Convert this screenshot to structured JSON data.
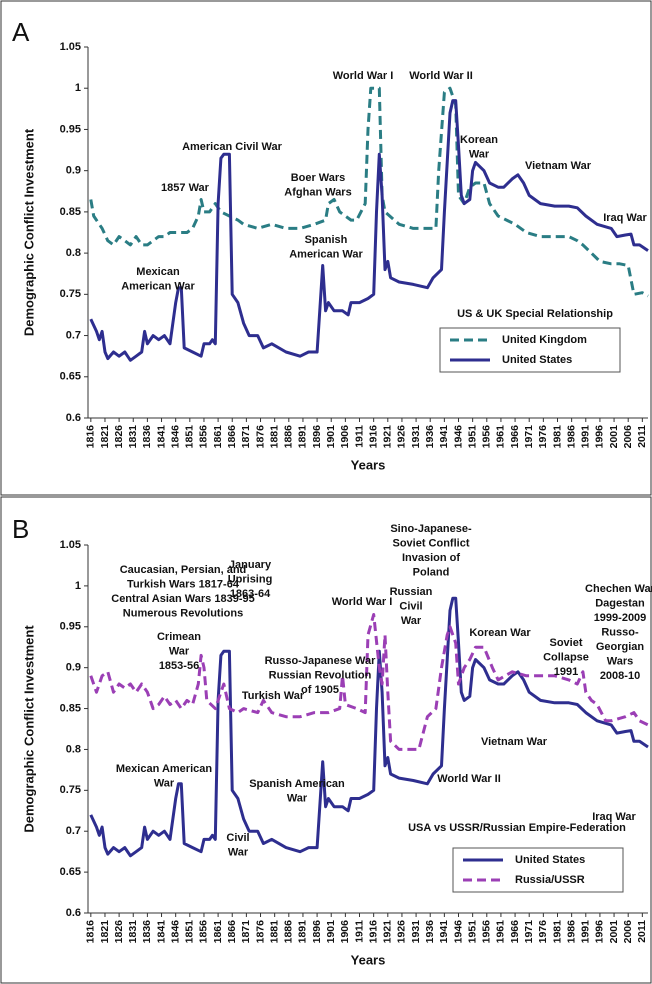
{
  "chart_data": [
    {
      "type": "line",
      "panel": "A",
      "ylabel": "Demographic Conflict Investment",
      "xlabel": "Years",
      "xlim": [
        1815,
        2013
      ],
      "ylim": [
        0.6,
        1.05
      ],
      "xticks": [
        1816,
        1821,
        1826,
        1831,
        1836,
        1841,
        1846,
        1851,
        1856,
        1861,
        1866,
        1871,
        1876,
        1881,
        1886,
        1891,
        1896,
        1901,
        1906,
        1911,
        1916,
        1921,
        1926,
        1931,
        1936,
        1941,
        1946,
        1951,
        1956,
        1961,
        1966,
        1971,
        1976,
        1981,
        1986,
        1991,
        1996,
        2001,
        2006,
        2011
      ],
      "yticks": [
        0.6,
        0.65,
        0.7,
        0.75,
        0.8,
        0.85,
        0.9,
        0.95,
        1,
        1.05
      ],
      "legend": "lower right",
      "series": [
        {
          "name": "United Kingdom",
          "color": "#2a7d84",
          "dash": true,
          "x": [
            1816,
            1817,
            1820,
            1822,
            1824,
            1826,
            1828,
            1830,
            1832,
            1834,
            1836,
            1838,
            1840,
            1842,
            1844,
            1846,
            1848,
            1850,
            1852,
            1854,
            1855,
            1856,
            1858,
            1860,
            1862,
            1865,
            1868,
            1870,
            1875,
            1880,
            1885,
            1890,
            1895,
            1899,
            1900,
            1902,
            1904,
            1908,
            1910,
            1913,
            1914,
            1915,
            1918,
            1919,
            1920,
            1925,
            1930,
            1935,
            1938,
            1939,
            1941,
            1943,
            1945,
            1946,
            1948,
            1950,
            1952,
            1955,
            1957,
            1960,
            1963,
            1966,
            1970,
            1975,
            1980,
            1985,
            1988,
            1990,
            1993,
            1996,
            2000,
            2003,
            2006,
            2008,
            2011,
            2013
          ],
          "values": [
            0.865,
            0.845,
            0.83,
            0.815,
            0.81,
            0.82,
            0.815,
            0.81,
            0.82,
            0.81,
            0.81,
            0.815,
            0.82,
            0.82,
            0.825,
            0.825,
            0.825,
            0.825,
            0.83,
            0.845,
            0.865,
            0.85,
            0.85,
            0.86,
            0.85,
            0.845,
            0.84,
            0.835,
            0.83,
            0.835,
            0.83,
            0.83,
            0.835,
            0.84,
            0.86,
            0.865,
            0.85,
            0.84,
            0.84,
            0.86,
            0.95,
            1.0,
            1.0,
            0.87,
            0.85,
            0.835,
            0.83,
            0.83,
            0.83,
            0.9,
            0.995,
            1.0,
            0.98,
            0.87,
            0.86,
            0.88,
            0.885,
            0.885,
            0.86,
            0.845,
            0.84,
            0.835,
            0.825,
            0.82,
            0.82,
            0.82,
            0.815,
            0.81,
            0.8,
            0.79,
            0.787,
            0.787,
            0.785,
            0.75,
            0.752,
            0.748
          ]
        },
        {
          "name": "United States",
          "color": "#2e2e8f",
          "dash": false,
          "x": [
            1816,
            1818,
            1819,
            1820,
            1821,
            1822,
            1824,
            1826,
            1828,
            1830,
            1832,
            1834,
            1835,
            1836,
            1838,
            1840,
            1842,
            1844,
            1846,
            1847,
            1848,
            1849,
            1852,
            1855,
            1856,
            1858,
            1859,
            1860,
            1861,
            1862,
            1863,
            1865,
            1866,
            1868,
            1870,
            1872,
            1875,
            1877,
            1880,
            1885,
            1890,
            1893,
            1896,
            1898,
            1899,
            1900,
            1902,
            1905,
            1907,
            1908,
            1911,
            1914,
            1916,
            1917,
            1918,
            1919,
            1920,
            1921,
            1922,
            1925,
            1930,
            1935,
            1937,
            1940,
            1941,
            1943,
            1944,
            1945,
            1946,
            1947,
            1948,
            1950,
            1951,
            1952,
            1955,
            1957,
            1960,
            1962,
            1965,
            1967,
            1969,
            1971,
            1975,
            1980,
            1985,
            1988,
            1991,
            1995,
            2000,
            2002,
            2005,
            2007,
            2008,
            2010,
            2013
          ],
          "values": [
            0.72,
            0.705,
            0.695,
            0.705,
            0.68,
            0.672,
            0.68,
            0.675,
            0.68,
            0.67,
            0.675,
            0.68,
            0.705,
            0.69,
            0.7,
            0.695,
            0.7,
            0.69,
            0.74,
            0.758,
            0.758,
            0.685,
            0.68,
            0.675,
            0.69,
            0.69,
            0.695,
            0.69,
            0.86,
            0.915,
            0.92,
            0.92,
            0.75,
            0.74,
            0.715,
            0.7,
            0.7,
            0.685,
            0.69,
            0.68,
            0.675,
            0.68,
            0.68,
            0.785,
            0.73,
            0.74,
            0.73,
            0.73,
            0.725,
            0.74,
            0.74,
            0.745,
            0.75,
            0.85,
            0.92,
            0.87,
            0.78,
            0.79,
            0.77,
            0.765,
            0.762,
            0.758,
            0.77,
            0.78,
            0.85,
            0.97,
            0.985,
            0.985,
            0.93,
            0.87,
            0.86,
            0.865,
            0.9,
            0.91,
            0.9,
            0.885,
            0.88,
            0.88,
            0.89,
            0.895,
            0.885,
            0.87,
            0.86,
            0.857,
            0.857,
            0.855,
            0.845,
            0.835,
            0.83,
            0.82,
            0.822,
            0.823,
            0.81,
            0.81,
            0.803
          ]
        }
      ],
      "annotations": [
        [
          "American Civil War"
        ],
        [
          "1857 War"
        ],
        [
          "Mexican",
          "American War"
        ],
        [
          "Boer Wars",
          "Afghan Wars"
        ],
        [
          "Spanish",
          "American War"
        ],
        [
          "World War I"
        ],
        [
          "World War II"
        ],
        [
          "Korean",
          "War"
        ],
        [
          "Vietnam War"
        ],
        [
          "Iraq War"
        ],
        [
          "US & UK Special Relationship"
        ]
      ]
    },
    {
      "type": "line",
      "panel": "B",
      "ylabel": "Demographic Conflict Investment",
      "xlabel": "Years",
      "xlim": [
        1815,
        2013
      ],
      "ylim": [
        0.6,
        1.05
      ],
      "xticks": [
        1816,
        1821,
        1826,
        1831,
        1836,
        1841,
        1846,
        1851,
        1856,
        1861,
        1866,
        1871,
        1876,
        1881,
        1886,
        1891,
        1896,
        1901,
        1906,
        1911,
        1916,
        1921,
        1926,
        1931,
        1936,
        1941,
        1946,
        1951,
        1956,
        1961,
        1966,
        1971,
        1976,
        1981,
        1986,
        1991,
        1996,
        2001,
        2006,
        2011
      ],
      "yticks": [
        0.6,
        0.65,
        0.7,
        0.75,
        0.8,
        0.85,
        0.9,
        0.95,
        1,
        1.05
      ],
      "legend": "lower right",
      "series": [
        {
          "name": "United States",
          "color": "#2e2e8f",
          "dash": false,
          "x": [
            1816,
            1818,
            1819,
            1820,
            1821,
            1822,
            1824,
            1826,
            1828,
            1830,
            1832,
            1834,
            1835,
            1836,
            1838,
            1840,
            1842,
            1844,
            1846,
            1847,
            1848,
            1849,
            1852,
            1855,
            1856,
            1858,
            1859,
            1860,
            1861,
            1862,
            1863,
            1865,
            1866,
            1868,
            1870,
            1872,
            1875,
            1877,
            1880,
            1885,
            1890,
            1893,
            1896,
            1898,
            1899,
            1900,
            1902,
            1905,
            1907,
            1908,
            1911,
            1914,
            1916,
            1917,
            1918,
            1919,
            1920,
            1921,
            1922,
            1925,
            1930,
            1935,
            1937,
            1940,
            1941,
            1943,
            1944,
            1945,
            1946,
            1947,
            1948,
            1950,
            1951,
            1952,
            1955,
            1957,
            1960,
            1962,
            1965,
            1967,
            1969,
            1971,
            1975,
            1980,
            1985,
            1988,
            1991,
            1995,
            2000,
            2002,
            2005,
            2007,
            2008,
            2010,
            2013
          ],
          "values": [
            0.72,
            0.705,
            0.695,
            0.705,
            0.68,
            0.672,
            0.68,
            0.675,
            0.68,
            0.67,
            0.675,
            0.68,
            0.705,
            0.69,
            0.7,
            0.695,
            0.7,
            0.69,
            0.74,
            0.758,
            0.758,
            0.685,
            0.68,
            0.675,
            0.69,
            0.69,
            0.695,
            0.69,
            0.86,
            0.915,
            0.92,
            0.92,
            0.75,
            0.74,
            0.715,
            0.7,
            0.7,
            0.685,
            0.69,
            0.68,
            0.675,
            0.68,
            0.68,
            0.785,
            0.73,
            0.74,
            0.73,
            0.73,
            0.725,
            0.74,
            0.74,
            0.745,
            0.75,
            0.85,
            0.92,
            0.87,
            0.78,
            0.79,
            0.77,
            0.765,
            0.762,
            0.758,
            0.77,
            0.78,
            0.85,
            0.97,
            0.985,
            0.985,
            0.93,
            0.87,
            0.86,
            0.865,
            0.9,
            0.91,
            0.9,
            0.885,
            0.88,
            0.88,
            0.89,
            0.895,
            0.885,
            0.87,
            0.86,
            0.857,
            0.857,
            0.855,
            0.845,
            0.835,
            0.83,
            0.82,
            0.822,
            0.823,
            0.81,
            0.81,
            0.803
          ]
        },
        {
          "name": "Russia/USSR",
          "color": "#9b3fb5",
          "dash": true,
          "x": [
            1816,
            1818,
            1820,
            1822,
            1824,
            1826,
            1828,
            1830,
            1832,
            1834,
            1836,
            1838,
            1840,
            1842,
            1844,
            1846,
            1848,
            1850,
            1852,
            1854,
            1855,
            1856,
            1857,
            1860,
            1863,
            1865,
            1868,
            1870,
            1875,
            1877,
            1880,
            1885,
            1890,
            1895,
            1900,
            1904,
            1905,
            1906,
            1910,
            1913,
            1914,
            1916,
            1918,
            1919,
            1920,
            1921,
            1922,
            1925,
            1930,
            1932,
            1935,
            1938,
            1940,
            1942,
            1943,
            1945,
            1946,
            1948,
            1950,
            1952,
            1955,
            1958,
            1960,
            1965,
            1970,
            1975,
            1980,
            1985,
            1988,
            1990,
            1991,
            1993,
            1995,
            1998,
            2000,
            2005,
            2008,
            2010,
            2013
          ],
          "values": [
            0.89,
            0.87,
            0.89,
            0.895,
            0.87,
            0.88,
            0.875,
            0.88,
            0.87,
            0.88,
            0.87,
            0.85,
            0.855,
            0.865,
            0.855,
            0.86,
            0.85,
            0.86,
            0.855,
            0.88,
            0.915,
            0.9,
            0.86,
            0.85,
            0.88,
            0.85,
            0.845,
            0.85,
            0.845,
            0.86,
            0.845,
            0.84,
            0.84,
            0.845,
            0.845,
            0.85,
            0.89,
            0.855,
            0.85,
            0.845,
            0.94,
            0.965,
            0.9,
            0.88,
            0.94,
            0.87,
            0.81,
            0.8,
            0.8,
            0.8,
            0.84,
            0.85,
            0.9,
            0.94,
            0.95,
            0.93,
            0.88,
            0.9,
            0.91,
            0.925,
            0.925,
            0.9,
            0.885,
            0.895,
            0.89,
            0.89,
            0.89,
            0.885,
            0.88,
            0.895,
            0.87,
            0.86,
            0.855,
            0.835,
            0.835,
            0.84,
            0.845,
            0.835,
            0.83
          ]
        }
      ],
      "annotations": [
        [
          "Caucasian, Persian, and",
          "Turkish Wars 1817-64",
          "Central Asian Wars 1839-95",
          "Numerous Revolutions"
        ],
        [
          "Crimean",
          "War",
          "1853-56"
        ],
        [
          "January",
          "Uprising",
          "1863-64"
        ],
        [
          "Russo-Japanese War",
          "Russian Revolution",
          "of 1905"
        ],
        [
          "Turkish War"
        ],
        [
          "World War I"
        ],
        [
          "Russian",
          "Civil",
          "War"
        ],
        [
          "Sino-Japanese-",
          "Soviet Conflict",
          "Invasion of",
          "Poland"
        ],
        [
          "Korean War"
        ],
        [
          "Soviet",
          "Collapse",
          "1991"
        ],
        [
          "Chechen War",
          "Dagestan",
          "1999-2009",
          "Russo-",
          "Georgian",
          "Wars",
          "2008-10"
        ],
        [
          "Mexican American",
          "War"
        ],
        [
          "Civil",
          "War"
        ],
        [
          "Spanish American",
          "War"
        ],
        [
          "Vietnam War"
        ],
        [
          "World War II"
        ],
        [
          "Iraq War"
        ],
        [
          "USA vs USSR/Russian Empire-Federation"
        ]
      ]
    }
  ]
}
